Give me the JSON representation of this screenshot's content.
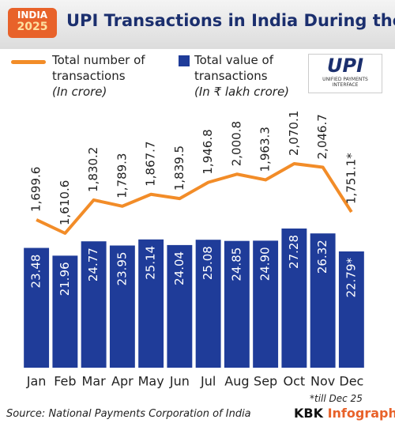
{
  "header": {
    "badge_top": "INDIA",
    "badge_year": "2025",
    "logo": "UPI",
    "logo_caption": "UNIFIED PAYMENTS INTERFACE"
  },
  "chart_data": {
    "type": "combo",
    "title": "UPI Transactions in India During the Year",
    "categories": [
      "Jan",
      "Feb",
      "Mar",
      "Apr",
      "May",
      "Jun",
      "Jul",
      "Aug",
      "Sep",
      "Oct",
      "Nov",
      "Dec"
    ],
    "series": [
      {
        "name": "Total number of transactions",
        "unit": "(In crore)",
        "type": "line",
        "color": "#f28c28",
        "values": [
          1699.6,
          1610.6,
          1830.2,
          1789.3,
          1867.7,
          1839.5,
          1946.8,
          2000.8,
          1963.3,
          2070.1,
          2046.7,
          1751.1
        ],
        "value_labels": [
          "1,699.6",
          "1,610.6",
          "1,830.2",
          "1,789.3",
          "1,867.7",
          "1,839.5",
          "1,946.8",
          "2,000.8",
          "1,963.3",
          "2,070.1",
          "2,046.7",
          "1,751.1*"
        ]
      },
      {
        "name": "Total value of transactions",
        "unit": "(In ₹ lakh crore)",
        "type": "bar",
        "color": "#1f3c99",
        "values": [
          23.48,
          21.96,
          24.77,
          23.95,
          25.14,
          24.04,
          25.08,
          24.85,
          24.9,
          27.28,
          26.32,
          22.79
        ],
        "value_labels": [
          "23.48",
          "21.96",
          "24.77",
          "23.95",
          "25.14",
          "24.04",
          "25.08",
          "24.85",
          "24.90",
          "27.28",
          "26.32",
          "22.79*"
        ]
      }
    ],
    "footnote": "*till Dec 25"
  },
  "footer": {
    "source": "Source: National Payments Corporation of India",
    "brand": "KBK",
    "brand_suffix": "Infographics"
  }
}
